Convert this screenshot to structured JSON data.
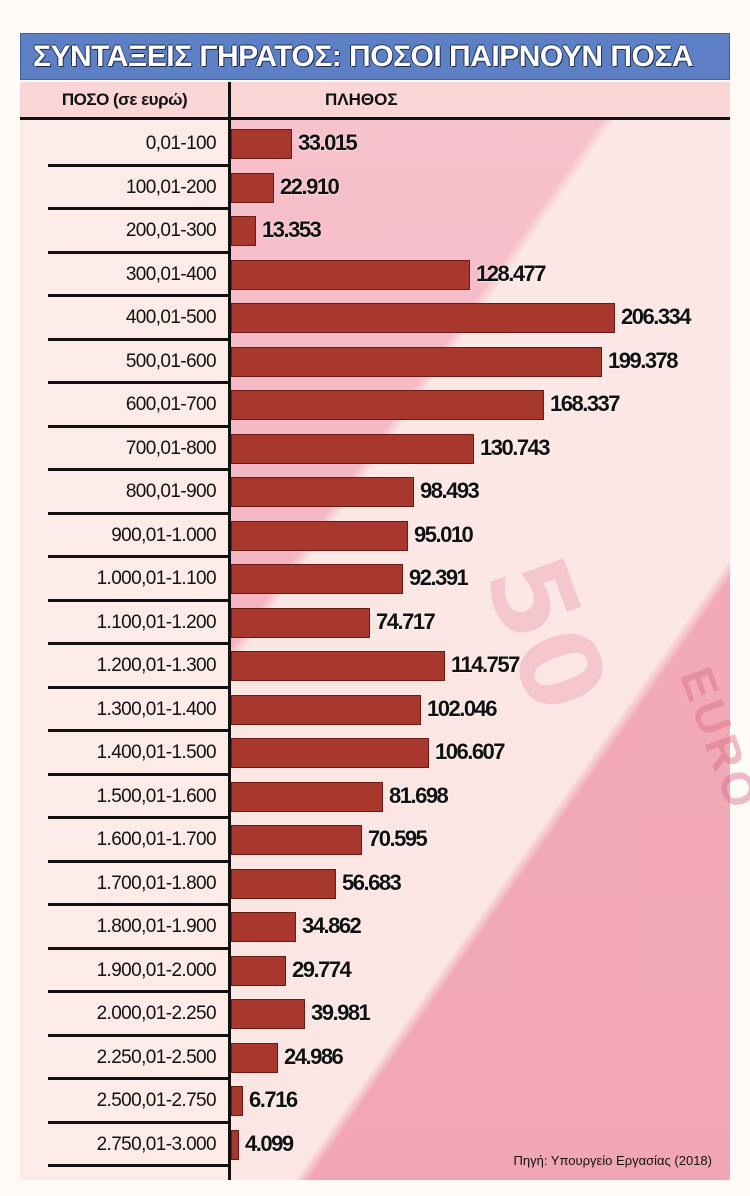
{
  "title": "ΣΥΝΤΑΞΕΙΣ ΓΗΡΑΤΟΣ: ΠΟΣΟΙ ΠΑΙΡΝΟΥΝ ΠΟΣΑ",
  "headers": {
    "amount": "ΠΟΣΟ (σε ευρώ)",
    "count": "ΠΛΗΘΟΣ"
  },
  "background": {
    "banknote_value": "50",
    "banknote_text": "EURO"
  },
  "source": "Πηγή: Υπουργείο Εργασίας (2018)",
  "colors": {
    "title_bar": "#5d7fc4",
    "subheader": "#fbd6d6",
    "bar": "#a8372d",
    "label_bg": "#fcebe7"
  },
  "rows": [
    {
      "label": "0,01-100",
      "value_label": "33.015",
      "value": 33015
    },
    {
      "label": "100,01-200",
      "value_label": "22.910",
      "value": 22910
    },
    {
      "label": "200,01-300",
      "value_label": "13.353",
      "value": 13353
    },
    {
      "label": "300,01-400",
      "value_label": "128.477",
      "value": 128477
    },
    {
      "label": "400,01-500",
      "value_label": "206.334",
      "value": 206334
    },
    {
      "label": "500,01-600",
      "value_label": "199.378",
      "value": 199378
    },
    {
      "label": "600,01-700",
      "value_label": "168.337",
      "value": 168337
    },
    {
      "label": "700,01-800",
      "value_label": "130.743",
      "value": 130743
    },
    {
      "label": "800,01-900",
      "value_label": "98.493",
      "value": 98493
    },
    {
      "label": "900,01-1.000",
      "value_label": "95.010",
      "value": 95010
    },
    {
      "label": "1.000,01-1.100",
      "value_label": "92.391",
      "value": 92391
    },
    {
      "label": "1.100,01-1.200",
      "value_label": "74.717",
      "value": 74717
    },
    {
      "label": "1.200,01-1.300",
      "value_label": "114.757",
      "value": 114757
    },
    {
      "label": "1.300,01-1.400",
      "value_label": "102.046",
      "value": 102046
    },
    {
      "label": "1.400,01-1.500",
      "value_label": "106.607",
      "value": 106607
    },
    {
      "label": "1.500,01-1.600",
      "value_label": "81.698",
      "value": 81698
    },
    {
      "label": "1.600,01-1.700",
      "value_label": "70.595",
      "value": 70595
    },
    {
      "label": "1.700,01-1.800",
      "value_label": "56.683",
      "value": 56683
    },
    {
      "label": "1.800,01-1.900",
      "value_label": "34.862",
      "value": 34862
    },
    {
      "label": "1.900,01-2.000",
      "value_label": "29.774",
      "value": 29774
    },
    {
      "label": "2.000,01-2.250",
      "value_label": "39.981",
      "value": 39981
    },
    {
      "label": "2.250,01-2.500",
      "value_label": "24.986",
      "value": 24986
    },
    {
      "label": "2.500,01-2.750",
      "value_label": "6.716",
      "value": 6716
    },
    {
      "label": "2.750,01-3.000",
      "value_label": "4.099",
      "value": 4099
    }
  ],
  "chart_data": {
    "type": "bar",
    "orientation": "horizontal",
    "title": "ΣΥΝΤΑΞΕΙΣ ΓΗΡΑΤΟΣ: ΠΟΣΟΙ ΠΑΙΡΝΟΥΝ ΠΟΣΑ",
    "xlabel": "ΠΛΗΘΟΣ",
    "ylabel": "ΠΟΣΟ (σε ευρώ)",
    "categories": [
      "0,01-100",
      "100,01-200",
      "200,01-300",
      "300,01-400",
      "400,01-500",
      "500,01-600",
      "600,01-700",
      "700,01-800",
      "800,01-900",
      "900,01-1.000",
      "1.000,01-1.100",
      "1.100,01-1.200",
      "1.200,01-1.300",
      "1.300,01-1.400",
      "1.400,01-1.500",
      "1.500,01-1.600",
      "1.600,01-1.700",
      "1.700,01-1.800",
      "1.800,01-1.900",
      "1.900,01-2.000",
      "2.000,01-2.250",
      "2.250,01-2.500",
      "2.500,01-2.750",
      "2.750,01-3.000"
    ],
    "values": [
      33015,
      22910,
      13353,
      128477,
      206334,
      199378,
      168337,
      130743,
      98493,
      95010,
      92391,
      74717,
      114757,
      102046,
      106607,
      81698,
      70595,
      56683,
      34862,
      29774,
      39981,
      24986,
      6716,
      4099
    ],
    "data_labels": true,
    "grid": false,
    "legend": null,
    "source": "Πηγή: Υπουργείο Εργασίας (2018)"
  }
}
